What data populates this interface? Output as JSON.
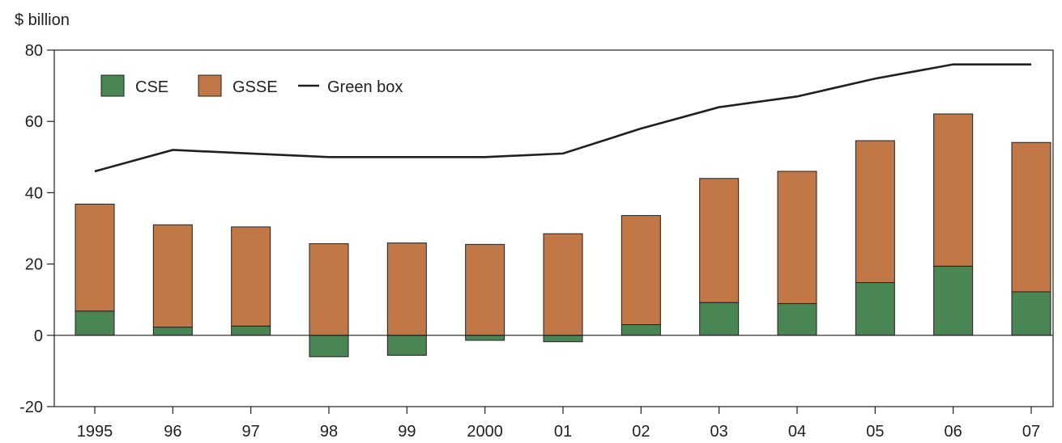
{
  "chart_data": {
    "type": "bar",
    "ylabel": "$ billion",
    "ylim": [
      -20,
      80
    ],
    "yticks": [
      -20,
      0,
      20,
      40,
      60,
      80
    ],
    "categories": [
      "1995",
      "96",
      "97",
      "98",
      "99",
      "2000",
      "01",
      "02",
      "03",
      "04",
      "05",
      "06",
      "07"
    ],
    "series": [
      {
        "name": "CSE",
        "kind": "stacked-bar",
        "color": "#4a8653",
        "values": [
          6.8,
          2.3,
          2.6,
          -6.0,
          -5.6,
          -1.4,
          -1.8,
          3.0,
          9.2,
          8.9,
          14.8,
          19.4,
          12.2
        ]
      },
      {
        "name": "GSSE",
        "kind": "stacked-bar",
        "color": "#c27746",
        "values": [
          30.0,
          28.7,
          27.8,
          25.7,
          25.9,
          25.5,
          28.5,
          30.6,
          34.8,
          37.1,
          39.8,
          42.7,
          41.9
        ]
      },
      {
        "name": "Green box",
        "kind": "line",
        "color": "#231f20",
        "values": [
          46,
          52,
          51,
          50,
          50,
          50,
          51,
          58,
          64,
          67,
          72,
          76,
          76
        ]
      }
    ],
    "legend": {
      "position": "top-left",
      "items": [
        "CSE",
        "GSSE",
        "Green box"
      ]
    },
    "grid": false
  }
}
